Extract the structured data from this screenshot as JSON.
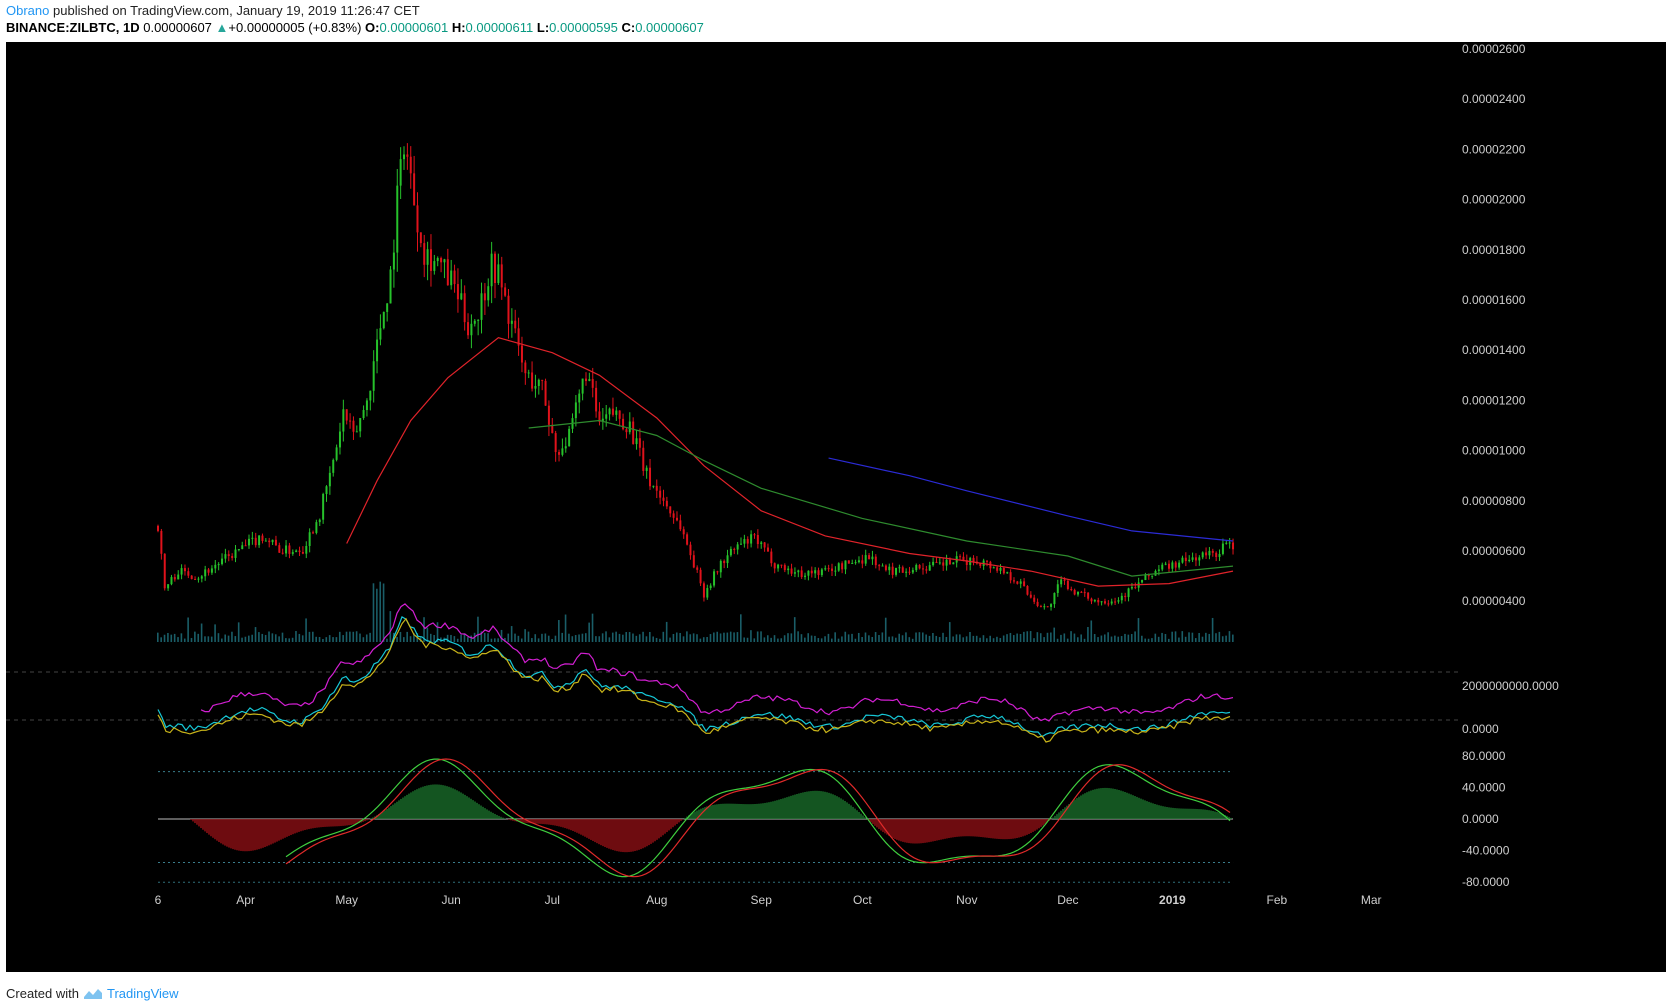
{
  "header": {
    "author": "Obrano",
    "published": "published on TradingView.com, January 19, 2019 11:26:47 CET",
    "symbol": "BINANCE:ZILBTC, 1D",
    "last": "0.00000607",
    "change": "+0.00000005 (+0.83%)",
    "o_label": "O:",
    "o_value": "0.00000601",
    "h_label": "H:",
    "h_value": "0.00000611",
    "l_label": "L:",
    "l_value": "0.00000595",
    "c_label": "C:",
    "c_value": "0.00000607"
  },
  "footer": {
    "created_with": "Created with",
    "brand": "TradingView"
  },
  "colors": {
    "background": "#000000",
    "up_candle": "#26c22b",
    "down_candle": "#e0121b",
    "ma_fast": "#e0232a",
    "ma_mid": "#2e8b2e",
    "ma_slow": "#2b2bd6",
    "volume": "#1f6f7a",
    "ind_magenta": "#d21fd2",
    "ind_cyan": "#16c7d6",
    "ind_yellow": "#c8b41a"
  },
  "chart_data": {
    "type": "line",
    "title": "BINANCE:ZILBTC, 1D",
    "x_ticks": [
      "6",
      "Apr",
      "May",
      "Jun",
      "Jul",
      "Aug",
      "Sep",
      "Oct",
      "Nov",
      "Dec",
      "2019",
      "Feb",
      "Mar"
    ],
    "price_axis_labels": [
      "0.00002600",
      "0.00002400",
      "0.00002200",
      "0.00002000",
      "0.00001800",
      "0.00001600",
      "0.00001400",
      "0.00001200",
      "0.00001000",
      "0.00000800",
      "0.00000600",
      "0.00000400"
    ],
    "ylim": [
      1.5e-06,
      2.65e-05
    ],
    "indicator1_axis_labels": [
      "2000000000.0000",
      "0.0000"
    ],
    "indicator2_axis_labels": [
      "80.0000",
      "40.0000",
      "0.0000",
      "-40.0000",
      "-80.0000"
    ],
    "indicator2_ylim": [
      -80,
      80
    ],
    "price_path": [
      [
        "2018-03-06",
        7.0
      ],
      [
        "2018-03-08",
        4.5
      ],
      [
        "2018-03-12",
        5.2
      ],
      [
        "2018-03-18",
        5.0
      ],
      [
        "2018-03-25",
        5.6
      ],
      [
        "2018-04-01",
        6.2
      ],
      [
        "2018-04-06",
        6.6
      ],
      [
        "2018-04-12",
        6.0
      ],
      [
        "2018-04-18",
        6.1
      ],
      [
        "2018-04-23",
        7.5
      ],
      [
        "2018-04-27",
        9.5
      ],
      [
        "2018-04-30",
        11.5
      ],
      [
        "2018-05-03",
        10.5
      ],
      [
        "2018-05-07",
        12.0
      ],
      [
        "2018-05-11",
        15.0
      ],
      [
        "2018-05-14",
        17.0
      ],
      [
        "2018-05-16",
        20.0
      ],
      [
        "2018-05-18",
        22.5
      ],
      [
        "2018-05-21",
        20.0
      ],
      [
        "2018-05-24",
        18.0
      ],
      [
        "2018-05-28",
        17.5
      ],
      [
        "2018-06-02",
        16.5
      ],
      [
        "2018-06-06",
        15.0
      ],
      [
        "2018-06-09",
        15.5
      ],
      [
        "2018-06-13",
        17.5
      ],
      [
        "2018-06-15",
        17.0
      ],
      [
        "2018-06-19",
        15.0
      ],
      [
        "2018-06-23",
        13.0
      ],
      [
        "2018-06-28",
        12.5
      ],
      [
        "2018-07-02",
        10.0
      ],
      [
        "2018-07-06",
        10.5
      ],
      [
        "2018-07-11",
        13.2
      ],
      [
        "2018-07-15",
        11.0
      ],
      [
        "2018-07-19",
        11.5
      ],
      [
        "2018-07-24",
        11.0
      ],
      [
        "2018-07-29",
        9.0
      ],
      [
        "2018-08-03",
        8.0
      ],
      [
        "2018-08-08",
        7.0
      ],
      [
        "2018-08-12",
        5.5
      ],
      [
        "2018-08-15",
        4.3
      ],
      [
        "2018-08-20",
        5.5
      ],
      [
        "2018-08-25",
        6.2
      ],
      [
        "2018-08-30",
        6.5
      ],
      [
        "2018-09-05",
        5.5
      ],
      [
        "2018-09-12",
        5.1
      ],
      [
        "2018-09-20",
        5.2
      ],
      [
        "2018-09-27",
        5.5
      ],
      [
        "2018-10-03",
        5.8
      ],
      [
        "2018-10-08",
        5.2
      ],
      [
        "2018-10-15",
        5.3
      ],
      [
        "2018-10-22",
        5.4
      ],
      [
        "2018-10-29",
        5.6
      ],
      [
        "2018-11-05",
        5.6
      ],
      [
        "2018-11-12",
        5.2
      ],
      [
        "2018-11-17",
        4.7
      ],
      [
        "2018-11-21",
        4.0
      ],
      [
        "2018-11-25",
        3.7
      ],
      [
        "2018-11-29",
        4.8
      ],
      [
        "2018-12-04",
        4.3
      ],
      [
        "2018-12-10",
        4.0
      ],
      [
        "2018-12-16",
        4.1
      ],
      [
        "2018-12-22",
        4.7
      ],
      [
        "2018-12-28",
        5.3
      ],
      [
        "2019-01-03",
        5.5
      ],
      [
        "2019-01-09",
        5.8
      ],
      [
        "2019-01-14",
        5.9
      ],
      [
        "2019-01-17",
        6.3
      ],
      [
        "2019-01-19",
        6.07
      ]
    ],
    "price_unit": "1e-6 BTC",
    "series": [
      {
        "values": [
          [
            "2018-05-01",
            6.3
          ],
          [
            "2018-05-10",
            8.8
          ],
          [
            "2018-05-20",
            11.2
          ],
          [
            "2018-05-31",
            12.9
          ],
          [
            "2018-06-15",
            14.5
          ],
          [
            "2018-07-01",
            13.9
          ],
          [
            "2018-07-15",
            13.0
          ],
          [
            "2018-08-01",
            11.3
          ],
          [
            "2018-08-15",
            9.4
          ],
          [
            "2018-09-01",
            7.6
          ],
          [
            "2018-09-20",
            6.6
          ],
          [
            "2018-10-15",
            5.9
          ],
          [
            "2018-11-01",
            5.6
          ],
          [
            "2018-11-20",
            5.2
          ],
          [
            "2018-12-10",
            4.6
          ],
          [
            "2018-12-31",
            4.7
          ],
          [
            "2019-01-19",
            5.2
          ]
        ]
      },
      {
        "values": [
          [
            "2018-06-24",
            10.9
          ],
          [
            "2018-07-15",
            11.2
          ],
          [
            "2018-08-01",
            10.6
          ],
          [
            "2018-08-15",
            9.6
          ],
          [
            "2018-09-01",
            8.5
          ],
          [
            "2018-10-01",
            7.3
          ],
          [
            "2018-11-01",
            6.4
          ],
          [
            "2018-12-01",
            5.8
          ],
          [
            "2018-12-20",
            5.0
          ],
          [
            "2019-01-19",
            5.4
          ]
        ]
      },
      {
        "values": [
          [
            "2018-09-21",
            9.7
          ],
          [
            "2018-10-15",
            9.0
          ],
          [
            "2018-11-01",
            8.4
          ],
          [
            "2018-12-01",
            7.4
          ],
          [
            "2018-12-20",
            6.8
          ],
          [
            "2019-01-19",
            6.4
          ]
        ]
      }
    ]
  }
}
